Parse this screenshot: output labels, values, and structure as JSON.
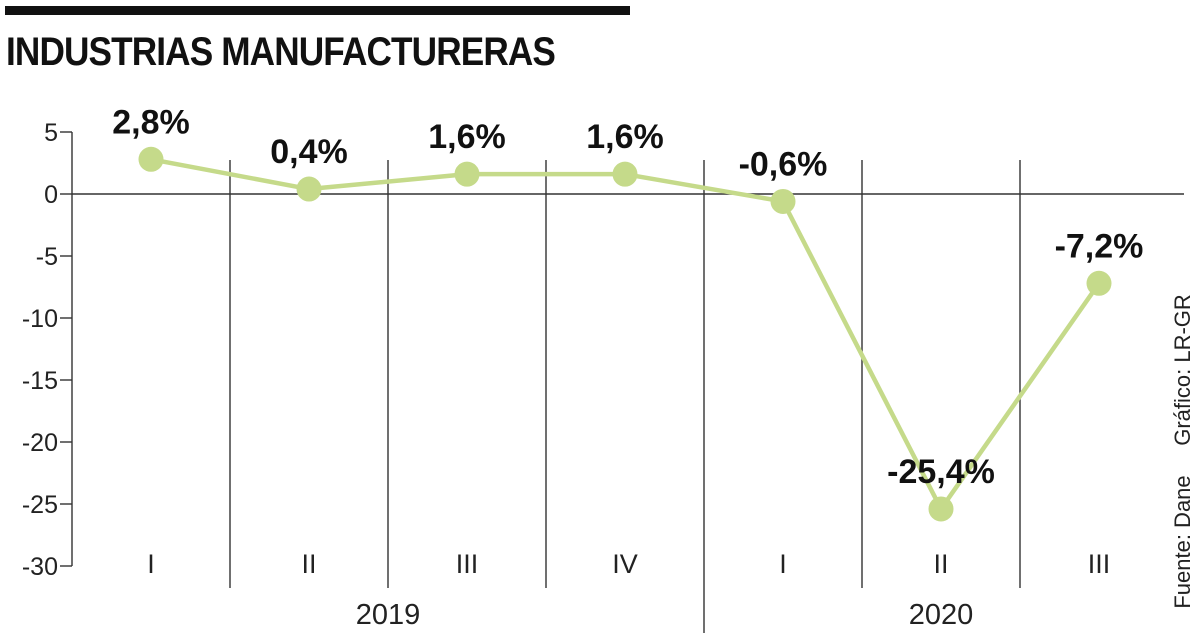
{
  "header": {
    "title": "INDUSTRIAS MANUFACTURERAS"
  },
  "chart_data": {
    "type": "line",
    "title": "INDUSTRIAS MANUFACTURERAS",
    "categories": [
      "I",
      "II",
      "III",
      "IV",
      "I",
      "II",
      "III"
    ],
    "years": [
      {
        "label": "2019",
        "count": 4
      },
      {
        "label": "2020",
        "count": 3
      }
    ],
    "series": [
      {
        "name": "Industrias manufactureras",
        "values": [
          2.8,
          0.4,
          1.6,
          1.6,
          -0.6,
          -25.4,
          -7.2
        ],
        "labels": [
          "2,8%",
          "0,4%",
          "1,6%",
          "1,6%",
          "-0,6%",
          "-25,4%",
          "-7,2%"
        ],
        "color": "#c5da8a"
      }
    ],
    "ylim": [
      -30,
      5
    ],
    "yticks": [
      5,
      0,
      -5,
      -10,
      -15,
      -20,
      -25,
      -30
    ],
    "ytick_labels": [
      "5",
      "0",
      "-5",
      "-10",
      "-15",
      "-20",
      "-25",
      "-30"
    ],
    "grid": "vertical",
    "xlabel": "",
    "ylabel": ""
  },
  "source": {
    "text": "Fuente: Dane",
    "credit": "Gráfico: LR-GR"
  }
}
